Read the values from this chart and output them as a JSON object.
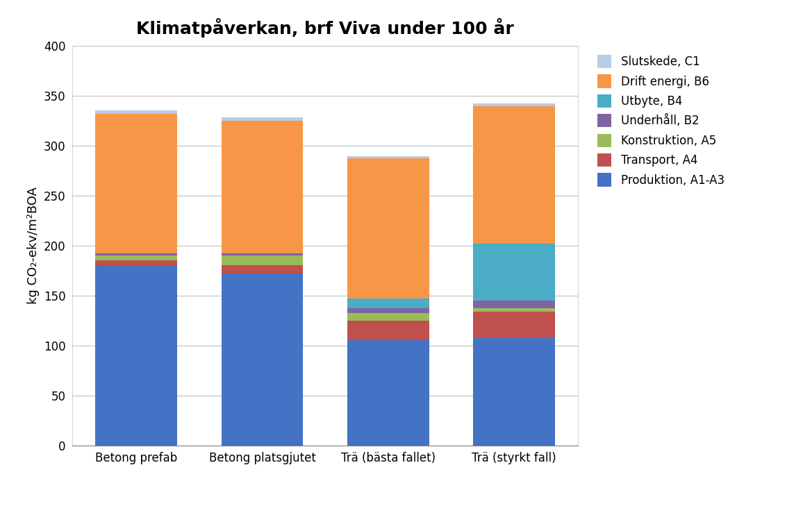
{
  "title": "Klimatpåverkan, brf Viva under 100 år",
  "ylabel": "kg CO₂-ekv/m²BOA",
  "categories": [
    "Betong prefab",
    "Betong platsgjutet",
    "Trä (bästa fallet)",
    "Trä (styrkt fall)"
  ],
  "series": [
    {
      "label": "Produktion, A1-A3",
      "color": "#4472C4",
      "values": [
        180,
        172,
        105,
        107
      ]
    },
    {
      "label": "Transport, A4",
      "color": "#C0504D",
      "values": [
        5,
        8,
        20,
        27
      ]
    },
    {
      "label": "Konstruktion, A5",
      "color": "#9BBB59",
      "values": [
        5,
        10,
        7,
        3
      ]
    },
    {
      "label": "Underhåll, B2",
      "color": "#8064A2",
      "values": [
        2,
        2,
        5,
        8
      ]
    },
    {
      "label": "Utbyte, B4",
      "color": "#4BACC6",
      "values": [
        0,
        0,
        10,
        57
      ]
    },
    {
      "label": "Drift energi, B6",
      "color": "#F79646",
      "values": [
        140,
        133,
        140,
        137
      ]
    },
    {
      "label": "Slutskede, C1",
      "color": "#B8CCE4",
      "values": [
        3,
        3,
        2,
        3
      ]
    }
  ],
  "ylim": [
    0,
    400
  ],
  "yticks": [
    0,
    50,
    100,
    150,
    200,
    250,
    300,
    350,
    400
  ],
  "bar_width": 0.65,
  "figsize": [
    11.56,
    7.29
  ],
  "dpi": 100,
  "title_fontsize": 18,
  "ylabel_fontsize": 13,
  "tick_fontsize": 12,
  "legend_fontsize": 12,
  "background_color": "#FFFFFF"
}
